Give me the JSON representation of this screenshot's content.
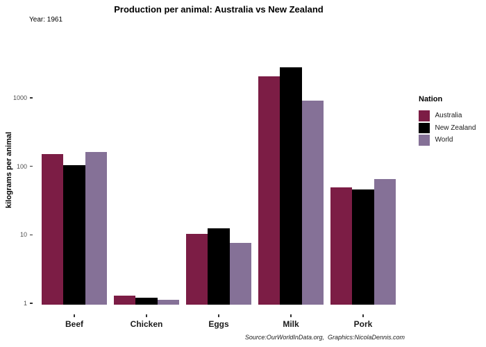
{
  "header": {
    "title": "Production per animal: Australia vs New Zealand",
    "subtitle": "Year: 1961"
  },
  "caption": "Source:OurWorldInData.org,  Graphics:NicolaDennis.com",
  "legend": {
    "title": "Nation",
    "items": [
      {
        "label": "Australia",
        "color": "#7C1D45"
      },
      {
        "label": "New Zealand",
        "color": "#000000"
      },
      {
        "label": "World",
        "color": "#857197"
      }
    ]
  },
  "colors": {
    "australia": "#7C1D45",
    "new_zealand": "#000000",
    "world": "#857197",
    "axis_text": "#4d4d4d",
    "tick_mark": "#333333"
  },
  "chart_data": {
    "type": "bar",
    "title": "Production per animal: Australia vs New Zealand",
    "subtitle": "Year: 1961",
    "xlabel": "",
    "ylabel": "kilograms per animal",
    "y_scale": "log10",
    "y_ticks": [
      1,
      10,
      100,
      1000
    ],
    "ylim": [
      0.7,
      4000
    ],
    "grid": false,
    "legend_position": "right",
    "legend_title": "Nation",
    "categories": [
      "Beef",
      "Chicken",
      "Eggs",
      "Milk",
      "Pork"
    ],
    "series": [
      {
        "name": "Australia",
        "color": "#7C1D45",
        "values": [
          150,
          1.3,
          10.4,
          2060,
          49
        ]
      },
      {
        "name": "New Zealand",
        "color": "#000000",
        "values": [
          103,
          1.2,
          12.4,
          2800,
          46
        ]
      },
      {
        "name": "World",
        "color": "#857197",
        "values": [
          162,
          1.13,
          7.6,
          910,
          66
        ]
      }
    ]
  }
}
